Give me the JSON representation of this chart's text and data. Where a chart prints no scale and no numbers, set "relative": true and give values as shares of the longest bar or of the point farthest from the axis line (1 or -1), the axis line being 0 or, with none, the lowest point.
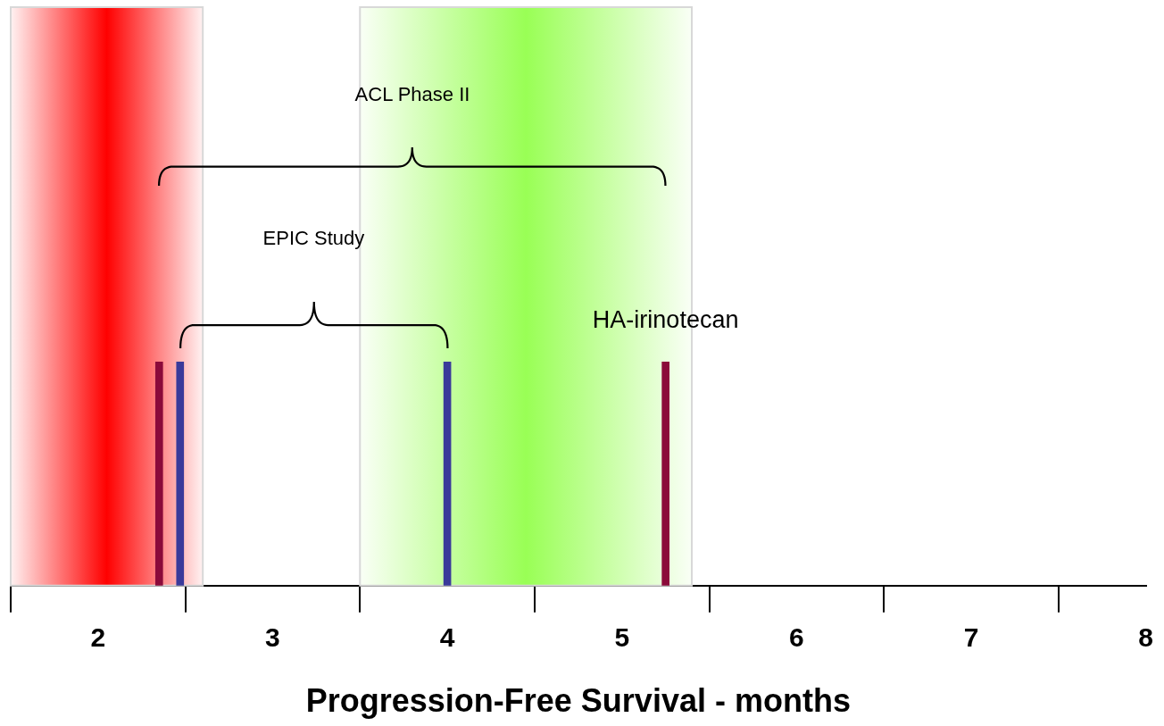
{
  "chart_data": {
    "type": "bar",
    "relative": true,
    "xlabel": "Progression-Free Survival - months",
    "x": [
      2.35,
      2.47,
      4.0,
      5.25
    ],
    "values": [
      1,
      1,
      1,
      1
    ],
    "colors": [
      "#8b0a3a",
      "#3a3a9a",
      "#3a3a9a",
      "#8b0a3a"
    ],
    "xlim": [
      1.5,
      8
    ],
    "xticks": [
      2,
      3,
      4,
      5,
      6,
      7,
      8
    ],
    "grid": false,
    "legend": false,
    "bands": [
      {
        "axis": "x",
        "from": 1.5,
        "to": 2.6,
        "color": "#ff0000"
      },
      {
        "axis": "x",
        "from": 3.5,
        "to": 5.4,
        "color": "#99ff55"
      }
    ],
    "annotations": [
      "ACL Phase II",
      "EPIC Study",
      {
        "text": "HA-irinotecan",
        "x": 5.25,
        "y": 1
      }
    ]
  }
}
